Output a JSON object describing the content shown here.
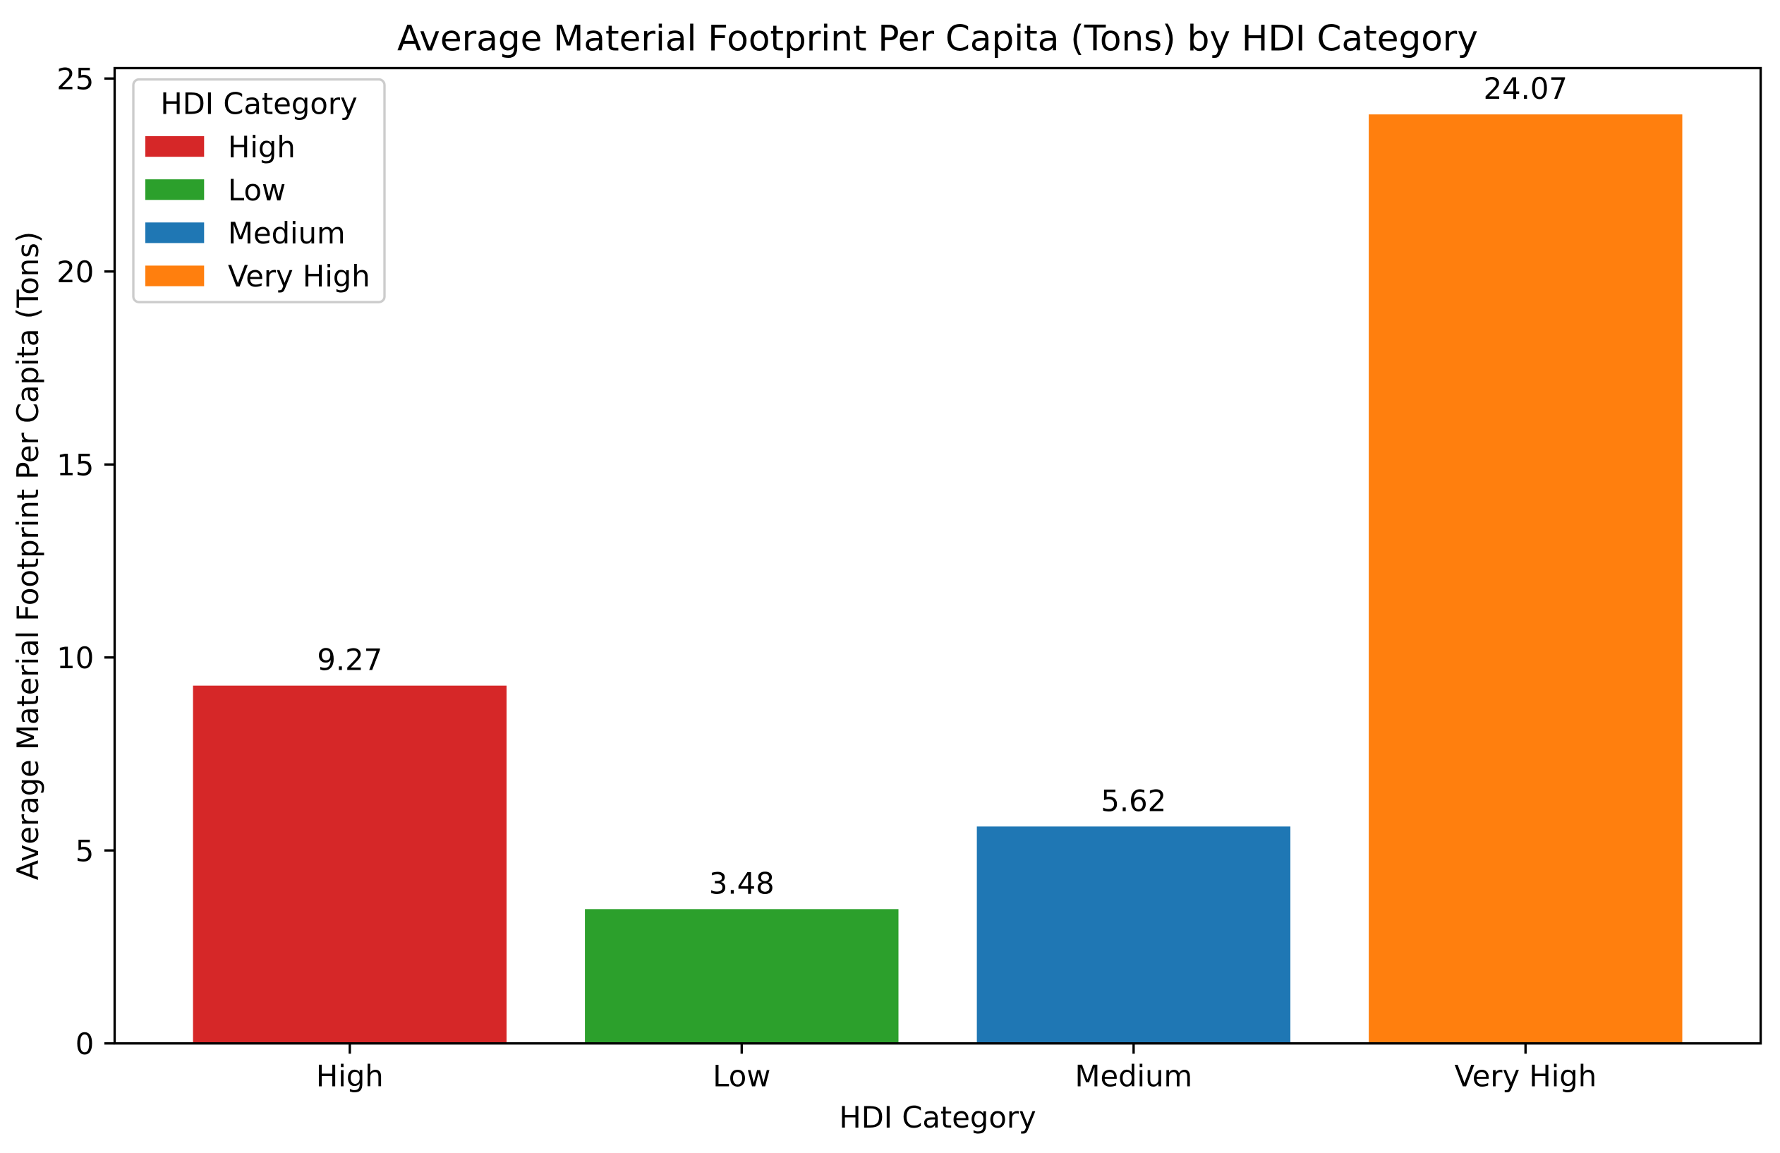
{
  "chart_data": {
    "type": "bar",
    "title": "Average Material Footprint Per Capita (Tons) by HDI Category",
    "xlabel": "HDI Category",
    "ylabel": "Average Material Footprint Per Capita (Tons)",
    "categories": [
      "High",
      "Low",
      "Medium",
      "Very High"
    ],
    "values": [
      9.27,
      3.48,
      5.62,
      24.07
    ],
    "colors": [
      "#d62728",
      "#2ca02c",
      "#1f77b4",
      "#ff7f0e"
    ],
    "ylim": [
      0,
      25.27
    ],
    "yticks": [
      0,
      5,
      10,
      15,
      20,
      25
    ],
    "grid": false,
    "legend": {
      "title": "HDI Category",
      "placement": "upper left"
    }
  }
}
